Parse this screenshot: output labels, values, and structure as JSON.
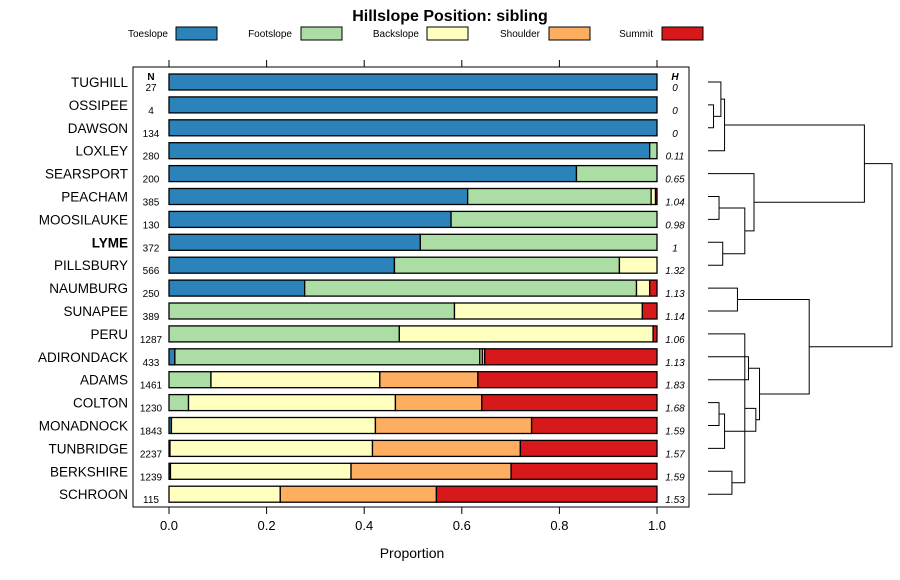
{
  "chart_data": {
    "type": "bar",
    "orientation": "horizontal",
    "stacked": true,
    "title": "Hillslope Position: sibling",
    "xlabel": "Proportion",
    "ylabel": "",
    "xlim": [
      0,
      1
    ],
    "x_ticks": [
      "0.0",
      "0.2",
      "0.4",
      "0.6",
      "0.8",
      "1.0"
    ],
    "x_tick_values": [
      0,
      0.2,
      0.4,
      0.6,
      0.8,
      1.0
    ],
    "n_header": "N",
    "h_header": "H",
    "legend": [
      {
        "label": "Toeslope",
        "color": "#2B83BA"
      },
      {
        "label": "Footslope",
        "color": "#ABDDA4"
      },
      {
        "label": "Backslope",
        "color": "#FFFFBF"
      },
      {
        "label": "Shoulder",
        "color": "#FDAE61"
      },
      {
        "label": "Summit",
        "color": "#D7191C"
      }
    ],
    "categories": [
      "TUGHILL",
      "OSSIPEE",
      "DAWSON",
      "LOXLEY",
      "SEARSPORT",
      "PEACHAM",
      "MOOSILAUKE",
      "LYME",
      "PILLSBURY",
      "NAUMBURG",
      "SUNAPEE",
      "PERU",
      "ADIRONDACK",
      "ADAMS",
      "COLTON",
      "MONADNOCK",
      "TUNBRIDGE",
      "BERKSHIRE",
      "SCHROON"
    ],
    "highlight": "LYME",
    "n": [
      "27",
      "4",
      "134",
      "280",
      "200",
      "385",
      "130",
      "372",
      "566",
      "250",
      "389",
      "1287",
      "433",
      "1461",
      "1230",
      "1843",
      "2237",
      "1239",
      "115"
    ],
    "h": [
      "0",
      "0",
      "0",
      "0.11",
      "0.65",
      "1.04",
      "0.98",
      "1",
      "1.32",
      "1.13",
      "1.14",
      "1.06",
      "1.13",
      "1.83",
      "1.68",
      "1.59",
      "1.57",
      "1.59",
      "1.53"
    ],
    "series": [
      {
        "name": "Toeslope",
        "values": [
          1.0,
          1.0,
          1.0,
          0.985,
          0.835,
          0.612,
          0.578,
          0.515,
          0.462,
          0.278,
          0.0,
          0.0,
          0.012,
          0.0,
          0.0,
          0.005,
          0.002,
          0.003,
          0.0
        ]
      },
      {
        "name": "Footslope",
        "values": [
          0.0,
          0.0,
          0.0,
          0.015,
          0.165,
          0.376,
          0.422,
          0.485,
          0.461,
          0.68,
          0.585,
          0.472,
          0.625,
          0.086,
          0.04,
          0.0,
          0.0,
          0.0,
          0.0
        ]
      },
      {
        "name": "Backslope",
        "values": [
          0.0,
          0.0,
          0.0,
          0.0,
          0.0,
          0.009,
          0.0,
          0.0,
          0.077,
          0.027,
          0.385,
          0.52,
          0.005,
          0.346,
          0.424,
          0.418,
          0.415,
          0.37,
          0.228
        ]
      },
      {
        "name": "Shoulder",
        "values": [
          0.0,
          0.0,
          0.0,
          0.0,
          0.0,
          0.0,
          0.0,
          0.0,
          0.0,
          0.0,
          0.0,
          0.0,
          0.005,
          0.201,
          0.177,
          0.32,
          0.303,
          0.328,
          0.32
        ]
      },
      {
        "name": "Summit",
        "values": [
          0.0,
          0.0,
          0.0,
          0.0,
          0.0,
          0.003,
          0.0,
          0.0,
          0.0,
          0.015,
          0.03,
          0.008,
          0.353,
          0.367,
          0.359,
          0.257,
          0.28,
          0.299,
          0.452
        ]
      }
    ],
    "dendrogram": {
      "merges": [
        [
          1,
          2,
          0.03
        ],
        [
          0,
          "m0",
          0.07
        ],
        [
          3,
          "m1",
          0.09
        ],
        [
          5,
          6,
          0.06
        ],
        [
          7,
          8,
          0.08
        ],
        [
          "m3",
          "m4",
          0.2
        ],
        [
          4,
          "m5",
          0.25
        ],
        [
          12,
          13,
          0.22
        ],
        [
          14,
          15,
          0.06
        ],
        [
          16,
          "m8",
          0.09
        ],
        [
          17,
          18,
          0.13
        ],
        [
          11,
          "m10",
          0.2
        ],
        [
          "m9",
          "m11",
          0.26
        ],
        [
          "m7",
          "m12",
          0.28
        ],
        [
          9,
          10,
          0.16
        ],
        [
          "m14",
          "m13",
          0.55
        ],
        [
          "m2",
          "m6",
          0.85
        ],
        [
          "m16",
          "m15",
          1.0
        ]
      ]
    }
  }
}
